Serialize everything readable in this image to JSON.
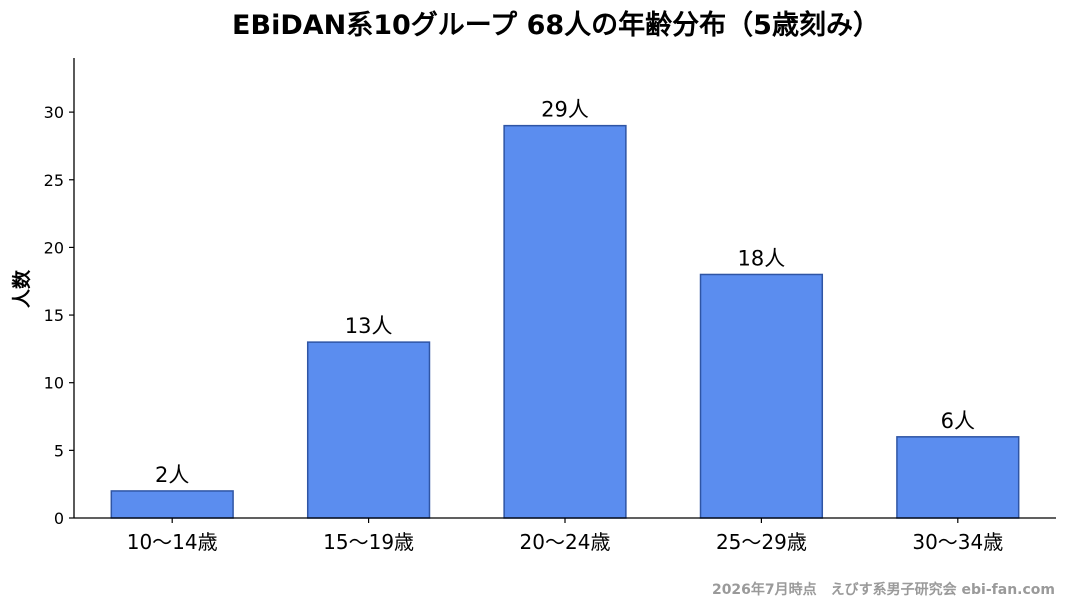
{
  "chart_data": {
    "type": "bar",
    "title": "EBiDAN系10グループ 68人の年齢分布（5歳刻み）",
    "ylabel": "人数",
    "xlabel": "",
    "categories": [
      "10〜14歳",
      "15〜19歳",
      "20〜24歳",
      "25〜29歳",
      "30〜34歳"
    ],
    "values": [
      2,
      13,
      29,
      18,
      6
    ],
    "value_labels": [
      "2人",
      "13人",
      "29人",
      "18人",
      "6人"
    ],
    "yticks": [
      0,
      5,
      10,
      15,
      20,
      25,
      30
    ],
    "ylim": [
      0,
      34
    ],
    "grid": false,
    "bar_color": "#5b8def",
    "bar_edge_color": "#2f55a4"
  },
  "footer": "2026年7月時点　えびす系男子研究会 ebi-fan.com"
}
